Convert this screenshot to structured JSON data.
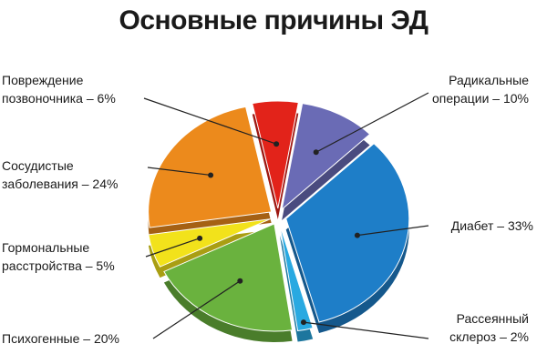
{
  "chart_data": {
    "type": "pie",
    "title": "Основные причины ЭД",
    "categories": [
      "Повреждение позвоночника – 6%",
      "Радикальные операции – 10%",
      "Диабет – 33%",
      "Рассеянный склероз – 2%",
      "Психогенные – 20%",
      "Гормональные расстройства – 5%",
      "Сосудистые заболевания – 24%"
    ],
    "values": [
      6,
      10,
      33,
      2,
      20,
      5,
      24
    ],
    "colors": [
      "#e2231a",
      "#6a6bb5",
      "#1e7ec8",
      "#29a9e1",
      "#6ab23e",
      "#f2e21b",
      "#ec8a1c"
    ]
  }
}
